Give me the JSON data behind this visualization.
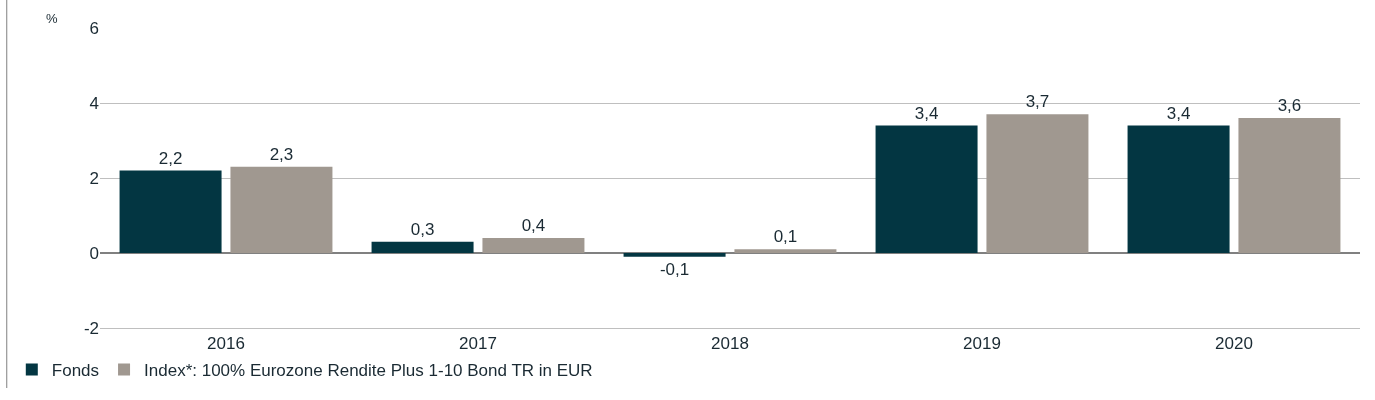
{
  "chart_data": {
    "type": "bar",
    "ylabel": "%",
    "categories": [
      "2016",
      "2017",
      "2018",
      "2019",
      "2020"
    ],
    "series": [
      {
        "name": "Fonds",
        "color": "#033642",
        "values": [
          2.2,
          0.3,
          -0.1,
          3.4,
          3.4
        ],
        "value_labels": [
          "2,2",
          "0,3",
          "-0,1",
          "3,4",
          "3,4"
        ]
      },
      {
        "name": "Index*: 100% Eurozone Rendite Plus 1-10 Bond TR in EUR",
        "color": "#a09890",
        "values": [
          2.3,
          0.4,
          0.1,
          3.7,
          3.6
        ],
        "value_labels": [
          "2,3",
          "0,4",
          "0,1",
          "3,7",
          "3,6"
        ]
      }
    ],
    "ylim": [
      -2,
      6
    ],
    "yticks": [
      -2,
      0,
      2,
      4,
      6
    ],
    "grid": "y",
    "legend": "bottom left"
  }
}
